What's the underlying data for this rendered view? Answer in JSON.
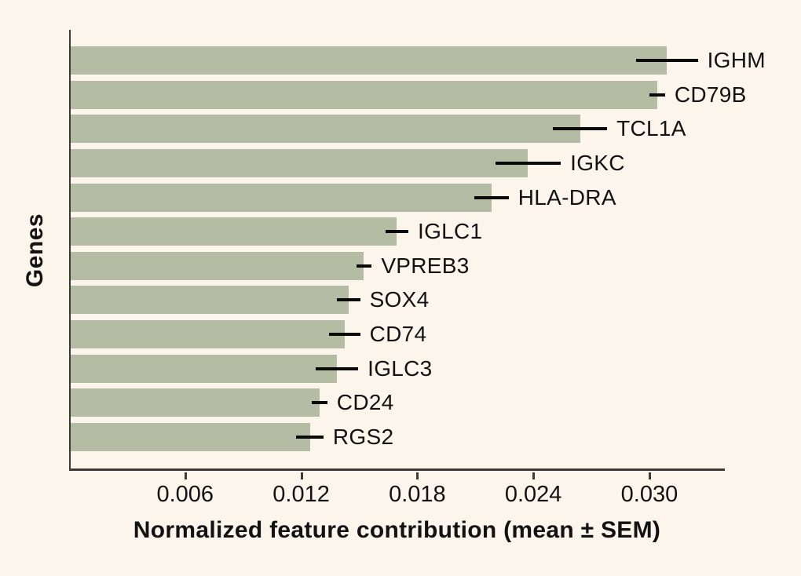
{
  "chart_data": {
    "type": "bar",
    "orientation": "horizontal",
    "title": "",
    "xlabel": "Normalized feature contribution (mean ± SEM)",
    "ylabel": "Genes",
    "categories": [
      "IGHM",
      "CD79B",
      "TCL1A",
      "IGKC",
      "HLA-DRA",
      "IGLC1",
      "VPREB3",
      "SOX4",
      "CD74",
      "IGLC3",
      "CD24",
      "RGS2"
    ],
    "values": [
      0.0309,
      0.0304,
      0.0264,
      0.0237,
      0.0218,
      0.0169,
      0.0152,
      0.0144,
      0.0142,
      0.0138,
      0.0129,
      0.0124
    ],
    "errors_sem": [
      0.0016,
      0.0004,
      0.0014,
      0.0017,
      0.0009,
      0.0006,
      0.0004,
      0.0006,
      0.0008,
      0.0011,
      0.0004,
      0.0007
    ],
    "x_ticks": [
      0.006,
      0.012,
      0.018,
      0.024,
      0.03
    ],
    "x_tick_labels": [
      "0.006",
      "0.012",
      "0.018",
      "0.024",
      "0.030"
    ],
    "xlim": [
      0,
      0.0339
    ],
    "grid": false,
    "legend": false,
    "colors": {
      "bar": "#b4bca4",
      "background": "#fbf5ec",
      "axis": "#3a3a37",
      "text": "#121212",
      "error_bar": "#0a0a0a"
    }
  }
}
